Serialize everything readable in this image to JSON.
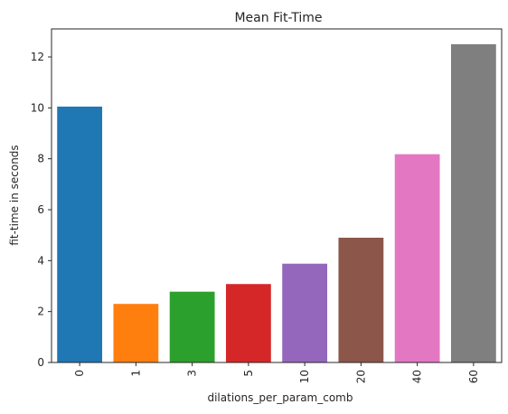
{
  "chart_data": {
    "type": "bar",
    "title": "Mean Fit-Time",
    "xlabel": "dilations_per_param_comb",
    "ylabel": "fit-time in seconds",
    "categories": [
      "0",
      "1",
      "3",
      "5",
      "10",
      "20",
      "40",
      "60"
    ],
    "values": [
      10.05,
      2.3,
      2.78,
      3.08,
      3.88,
      4.9,
      8.18,
      12.5
    ],
    "colors": [
      "#1f77b4",
      "#ff7f0e",
      "#2ca02c",
      "#d62728",
      "#9467bd",
      "#8c564b",
      "#e377c2",
      "#7f7f7f"
    ],
    "ylim": [
      0,
      13.1
    ],
    "yticks": [
      0,
      2,
      4,
      6,
      8,
      10,
      12
    ],
    "grid": false,
    "legend": "none"
  }
}
